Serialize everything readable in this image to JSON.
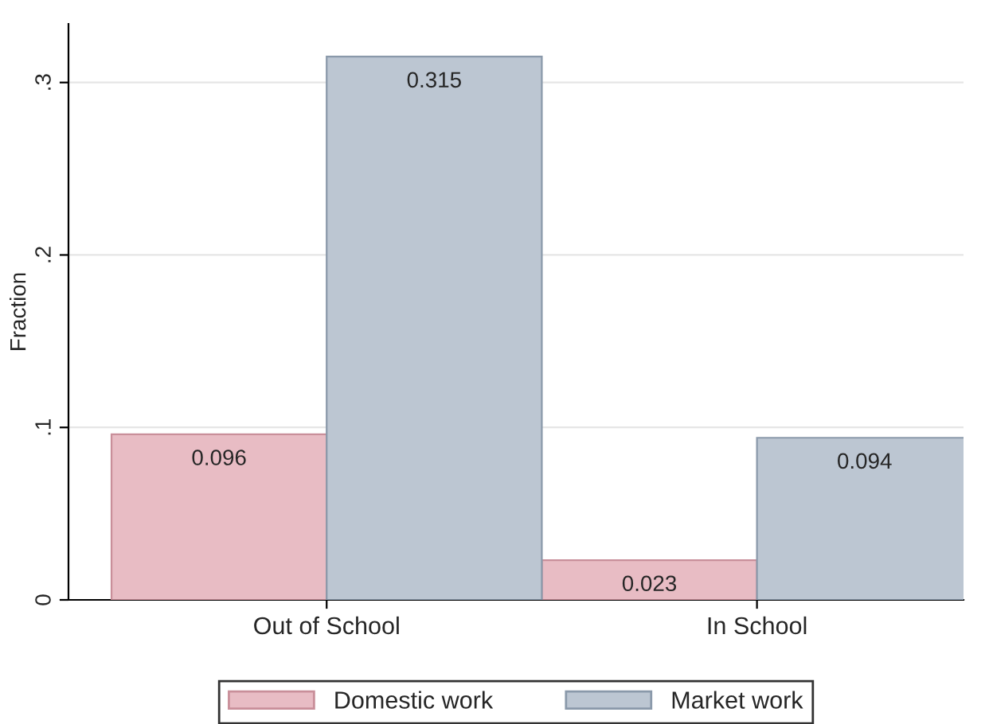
{
  "chart_data": {
    "type": "bar",
    "ylabel": "Fraction",
    "categories": [
      "Out of School",
      "In School"
    ],
    "series": [
      {
        "name": "Domestic work",
        "color": "#e8bcc4",
        "values": [
          0.096,
          0.023
        ]
      },
      {
        "name": "Market work",
        "color": "#bcc6d2",
        "values": [
          0.315,
          0.094
        ]
      }
    ],
    "data_labels": true,
    "ylim": [
      0,
      0.334
    ],
    "yticks": [
      {
        "value": 0,
        "label": "0"
      },
      {
        "value": 0.1,
        "label": ".1"
      },
      {
        "value": 0.2,
        "label": ".2"
      },
      {
        "value": 0.3,
        "label": ".3"
      }
    ],
    "grid": "y",
    "legend": "bottom"
  }
}
